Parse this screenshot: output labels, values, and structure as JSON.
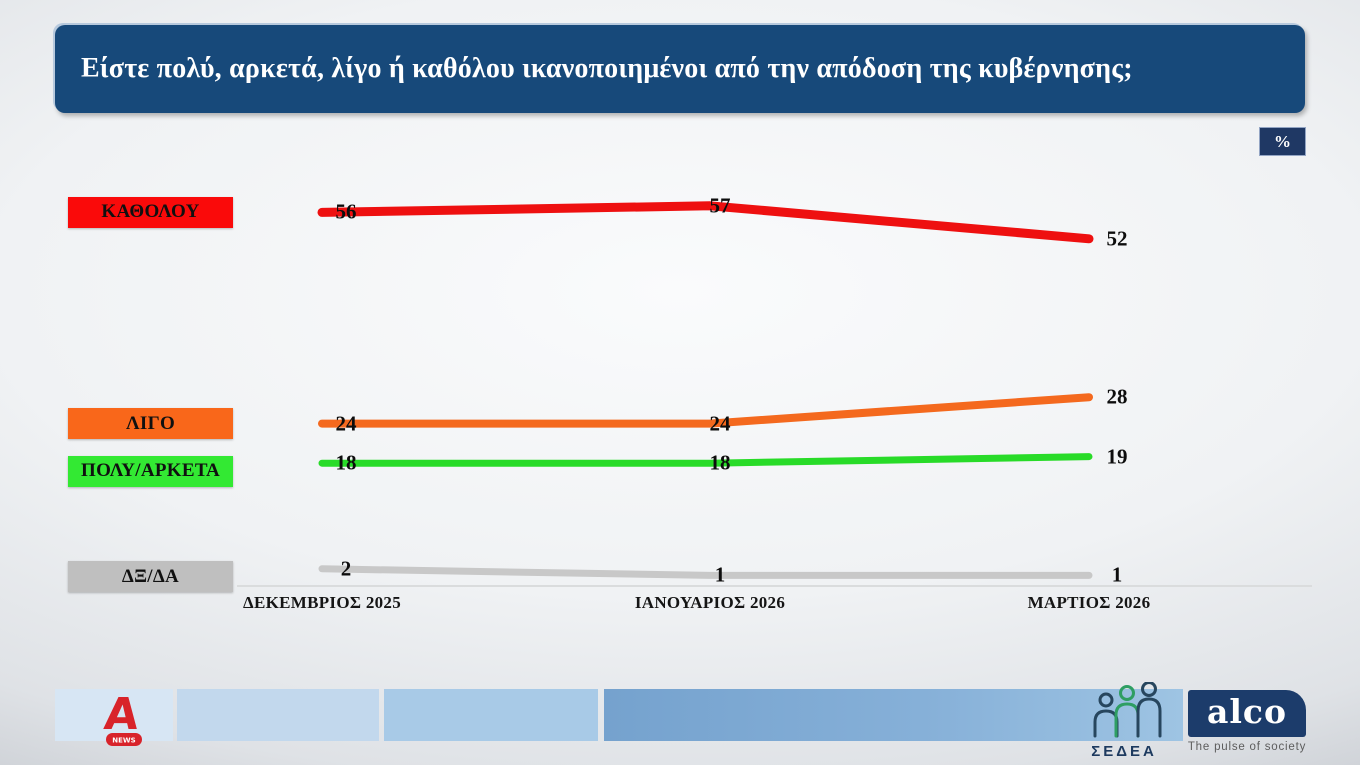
{
  "title": "Είστε πολύ, αρκετά, λίγο ή καθόλου ικανοποιημένοι από την απόδοση της κυβέρνησης;",
  "unit_badge": "%",
  "chart_data": {
    "type": "line",
    "title": "Είστε πολύ, αρκετά, λίγο ή καθόλου ικανοποιημένοι από την απόδοση της κυβέρνησης;",
    "categories": [
      "ΔΕΚΕΜΒΡΙΟΣ 2025",
      "ΙΑΝΟΥΑΡΙΟΣ 2026",
      "ΜΑΡΤΙΟΣ 2026"
    ],
    "series": [
      {
        "name": "ΚΑΘΟΛΟΥ",
        "values": [
          56,
          57,
          52
        ],
        "color": "#EE1010",
        "label_bg": "#FA0A0A"
      },
      {
        "name": "ΛΙΓΟ",
        "values": [
          24,
          24,
          28
        ],
        "color": "#F4691E",
        "label_bg": "#F9671A"
      },
      {
        "name": "ΠΟΛΥ/ΑΡΚΕΤΑ",
        "values": [
          18,
          18,
          19
        ],
        "color": "#28DB28",
        "label_bg": "#33E933"
      },
      {
        "name": "ΔΞ/ΔΑ",
        "values": [
          2,
          1,
          1
        ],
        "color": "#C8C8C8",
        "label_bg": "#BFBFBF"
      }
    ],
    "xlabel": "",
    "ylabel": "%",
    "ylim": [
      0,
      88
    ],
    "grid": false,
    "legend_position": "left",
    "data_labels": true
  },
  "footer": {
    "alpha": {
      "icon": "alpha-news-logo",
      "badge": "NEWS"
    },
    "sedea": {
      "icon": "sedea-people-logo",
      "label": "ΣΕΔΕΑ"
    },
    "alco": {
      "wordmark": "alco",
      "tagline": "The pulse of society"
    }
  },
  "colors": {
    "title_bar": "#17497A",
    "badge_bg": "#1F3864",
    "alco_bg": "#1C3C6B",
    "alpha_red": "#D8232A"
  }
}
